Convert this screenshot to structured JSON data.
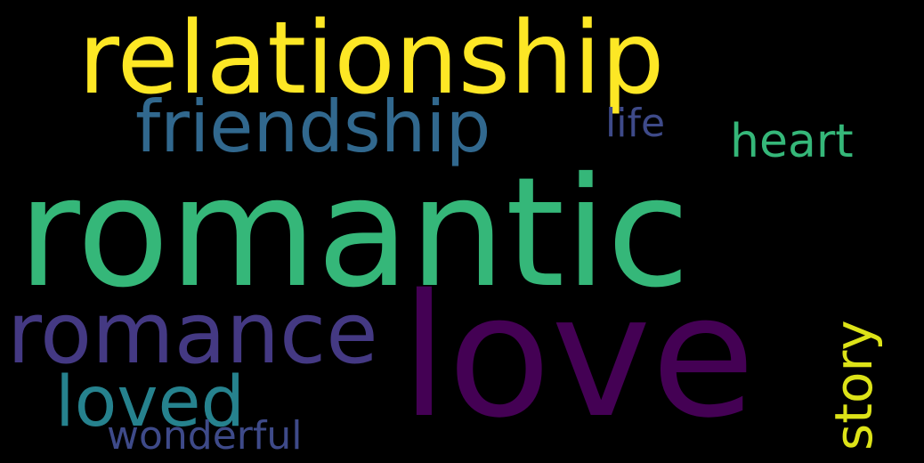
{
  "words": {
    "relationship": {
      "text": "relationship",
      "color": "#fde725"
    },
    "friendship": {
      "text": "friendship",
      "color": "#31688e"
    },
    "life": {
      "text": "life",
      "color": "#3e4a89"
    },
    "heart": {
      "text": "heart",
      "color": "#35b779"
    },
    "romantic": {
      "text": "romantic",
      "color": "#35b779"
    },
    "romance": {
      "text": "romance",
      "color": "#443983"
    },
    "love": {
      "text": "love",
      "color": "#440154"
    },
    "story": {
      "text": "story",
      "color": "#dde318"
    },
    "loved": {
      "text": "loved",
      "color": "#26828e"
    },
    "wonderful": {
      "text": "wonderful",
      "color": "#3e4a89"
    }
  },
  "background": "#000000"
}
